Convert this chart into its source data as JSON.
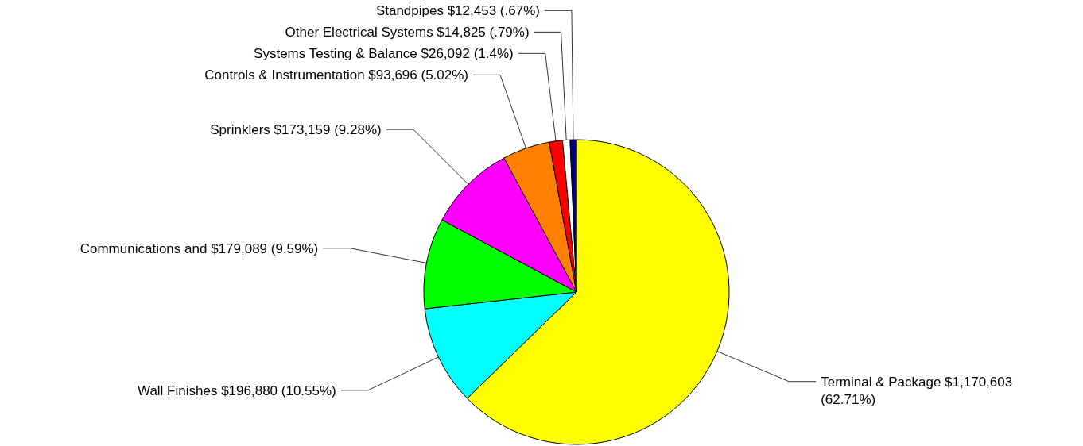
{
  "chart_data": {
    "type": "pie",
    "categories": [
      "Terminal & Package",
      "Wall Finishes",
      "Communications and",
      "Sprinklers",
      "Controls & Instrumentation",
      "Systems Testing & Balance",
      "Other Electrical Systems",
      "Standpipes"
    ],
    "values": [
      1170603,
      196880,
      179089,
      173159,
      93696,
      26092,
      14825,
      12453
    ],
    "value_labels": [
      "$1,170,603 (62.71%)",
      "$196,880 (10.55%)",
      "$179,089 (9.59%)",
      "$173,159 (9.28%)",
      "$93,696 (5.02%)",
      "$26,092 (1.4%)",
      "$14,825 (.79%)",
      "$12,453 (.67%)"
    ],
    "colors": [
      "#ffff00",
      "#00ffff",
      "#00ff00",
      "#ff00ff",
      "#ff8000",
      "#ff0000",
      "#ffffff",
      "#000080"
    ]
  }
}
